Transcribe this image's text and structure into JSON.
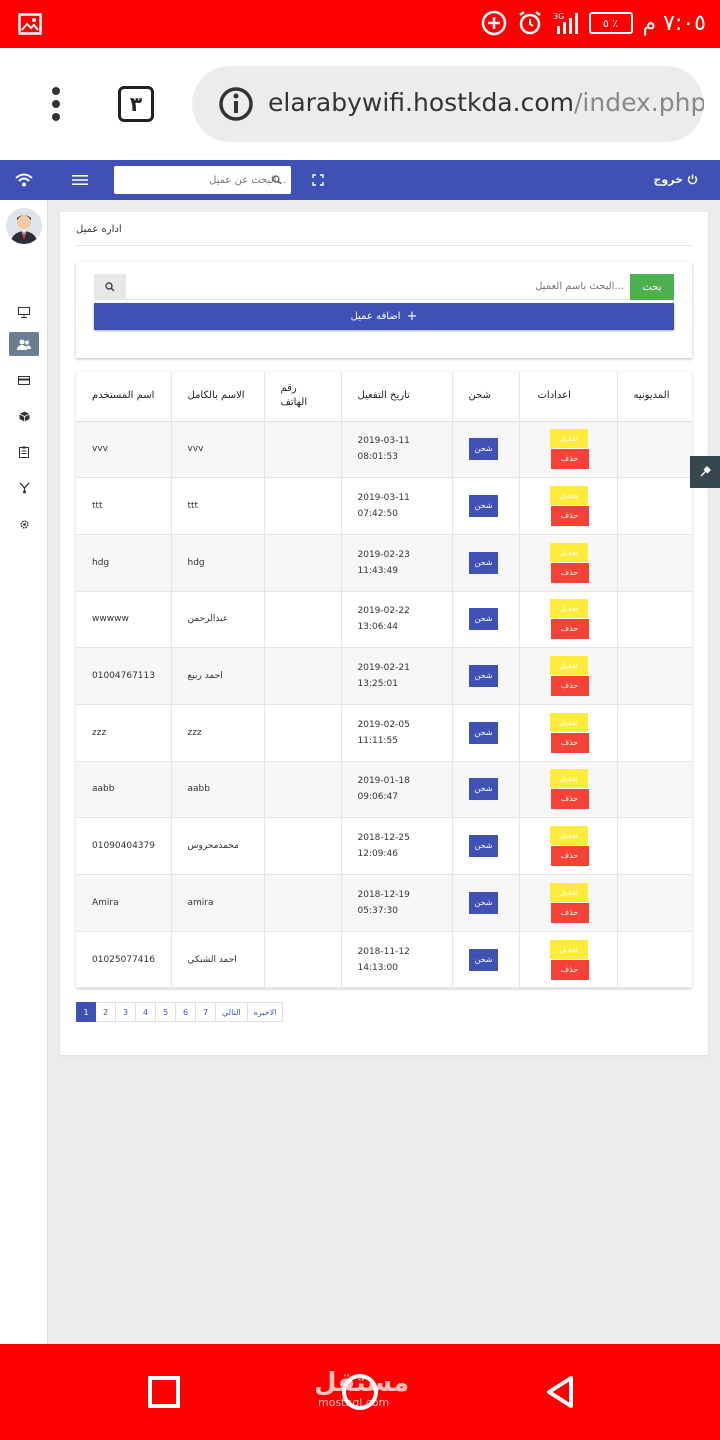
{
  "status_bar": {
    "time": "٧:٠٥ م",
    "battery": "٥ ٪",
    "network": "3G"
  },
  "browser": {
    "tab_count": "٣",
    "url_host": "elarabywifi.hostkda.com",
    "url_path": "/index.php"
  },
  "topnav": {
    "search_placeholder": "...البحث عن عميل",
    "logout_label": "خروج"
  },
  "breadcrumb": "اداره عميل",
  "client_search": {
    "placeholder": "...البحث بأسم العميل",
    "search_button": "بحث",
    "add_button": "اضافه عميل"
  },
  "table": {
    "headers": {
      "username": "اسم المستخدم",
      "fullname": "الاسم بالكامل",
      "phone": "رقم الهاتف",
      "activation": "تاريخ التفعيل",
      "charge": "شحن",
      "settings": "اعدادات",
      "debt": "المديونيه"
    },
    "charge_label": "شحن",
    "edit_label": "تعديل",
    "delete_label": "حذف",
    "rows": [
      {
        "username": "vvv",
        "fullname": "vvv",
        "phone": "",
        "date": "2019-03-11",
        "time": "08:01:53"
      },
      {
        "username": "ttt",
        "fullname": "ttt",
        "phone": "",
        "date": "2019-03-11",
        "time": "07:42:50"
      },
      {
        "username": "hdg",
        "fullname": "hdg",
        "phone": "",
        "date": "2019-02-23",
        "time": "11:43:49"
      },
      {
        "username": "wwwww",
        "fullname": "عبدالرحمن",
        "phone": "",
        "date": "2019-02-22",
        "time": "13:06:44"
      },
      {
        "username": "01004767113",
        "fullname": "احمد ربيع",
        "phone": "",
        "date": "2019-02-21",
        "time": "13:25:01"
      },
      {
        "username": "zzz",
        "fullname": "zzz",
        "phone": "",
        "date": "2019-02-05",
        "time": "11:11:55"
      },
      {
        "username": "aabb",
        "fullname": "aabb",
        "phone": "",
        "date": "2019-01-18",
        "time": "09:06:47"
      },
      {
        "username": "01090404379",
        "fullname": "محمدمحروس",
        "phone": "",
        "date": "2018-12-25",
        "time": "12:09:46"
      },
      {
        "username": "Amira",
        "fullname": "amira",
        "phone": "",
        "date": "2018-12-19",
        "time": "05:37:30"
      },
      {
        "username": "01025077416",
        "fullname": "احمد الشبكي",
        "phone": "",
        "date": "2018-11-12",
        "time": "14:13:00"
      }
    ]
  },
  "pagination": {
    "pages": [
      "1",
      "2",
      "3",
      "4",
      "5",
      "6",
      "7"
    ],
    "next": "التالي",
    "last": "الاخيره",
    "active": "1"
  },
  "watermark": {
    "text": "مستقل",
    "sub": "mostaql.com"
  },
  "colors": {
    "primary": "#3f51b5",
    "success": "#4caf50",
    "warning": "#ffeb3b",
    "danger": "#f44336",
    "chrome": "#ff0000"
  }
}
